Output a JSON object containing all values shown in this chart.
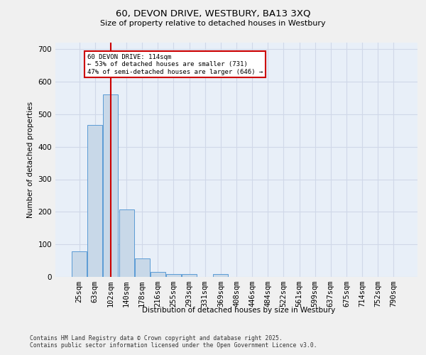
{
  "title_line1": "60, DEVON DRIVE, WESTBURY, BA13 3XQ",
  "title_line2": "Size of property relative to detached houses in Westbury",
  "xlabel": "Distribution of detached houses by size in Westbury",
  "ylabel": "Number of detached properties",
  "categories": [
    "25sqm",
    "63sqm",
    "102sqm",
    "140sqm",
    "178sqm",
    "216sqm",
    "255sqm",
    "293sqm",
    "331sqm",
    "369sqm",
    "408sqm",
    "446sqm",
    "484sqm",
    "522sqm",
    "561sqm",
    "599sqm",
    "637sqm",
    "675sqm",
    "714sqm",
    "752sqm",
    "790sqm"
  ],
  "values": [
    78,
    467,
    560,
    207,
    57,
    15,
    9,
    9,
    0,
    8,
    0,
    0,
    0,
    0,
    0,
    0,
    0,
    0,
    0,
    0,
    0
  ],
  "bar_color": "#c8d8e8",
  "bar_edge_color": "#5b9bd5",
  "grid_color": "#d0d8e8",
  "bg_color": "#e8eff8",
  "vline_x": 2,
  "vline_color": "#cc0000",
  "annotation_text": "60 DEVON DRIVE: 114sqm\n← 53% of detached houses are smaller (731)\n47% of semi-detached houses are larger (646) →",
  "annotation_box_color": "#ffffff",
  "annotation_box_edge": "#cc0000",
  "ylim": [
    0,
    720
  ],
  "yticks": [
    0,
    100,
    200,
    300,
    400,
    500,
    600,
    700
  ],
  "footer_line1": "Contains HM Land Registry data © Crown copyright and database right 2025.",
  "footer_line2": "Contains public sector information licensed under the Open Government Licence v3.0."
}
